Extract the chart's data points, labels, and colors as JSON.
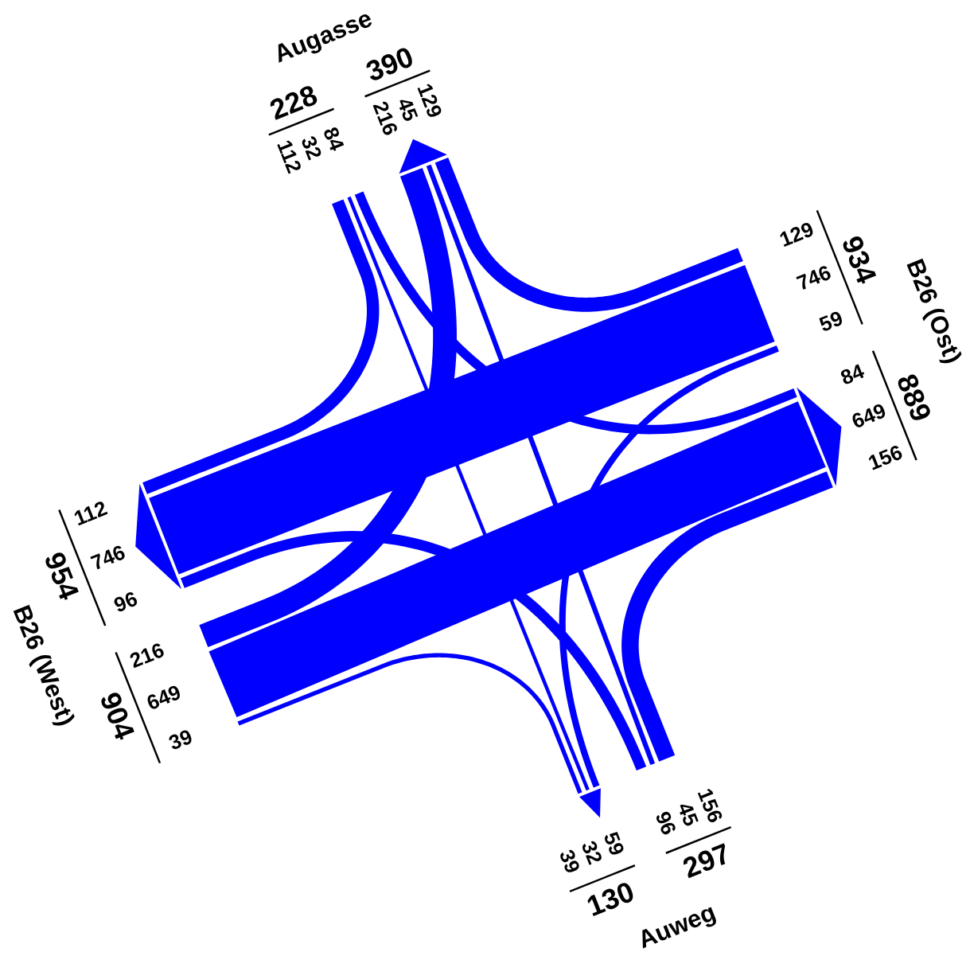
{
  "chart_data": {
    "type": "other",
    "categories": [
      "Augasse",
      "B26 (Ost)",
      "Auweg",
      "B26 (West)"
    ],
    "series": [
      {
        "color": "#0000ff",
        "values": [
          null,
          84,
          32,
          112
        ]
      },
      {
        "color": "#0000ff",
        "values": [
          129,
          null,
          59,
          746
        ]
      },
      {
        "color": "#0000ff",
        "values": [
          45,
          156,
          null,
          96
        ]
      },
      {
        "color": "#0000ff",
        "values": [
          216,
          649,
          39,
          null
        ]
      }
    ],
    "annotations": [
      "84",
      "32",
      "112",
      "129",
      "59",
      "746",
      "45",
      "156",
      "96",
      "216",
      "649",
      "39"
    ],
    "totals": [
      [
        "228",
        "390"
      ],
      [
        "934",
        "889"
      ],
      [
        "297",
        "130"
      ],
      [
        "904",
        "954"
      ]
    ],
    "data_labels": true
  }
}
